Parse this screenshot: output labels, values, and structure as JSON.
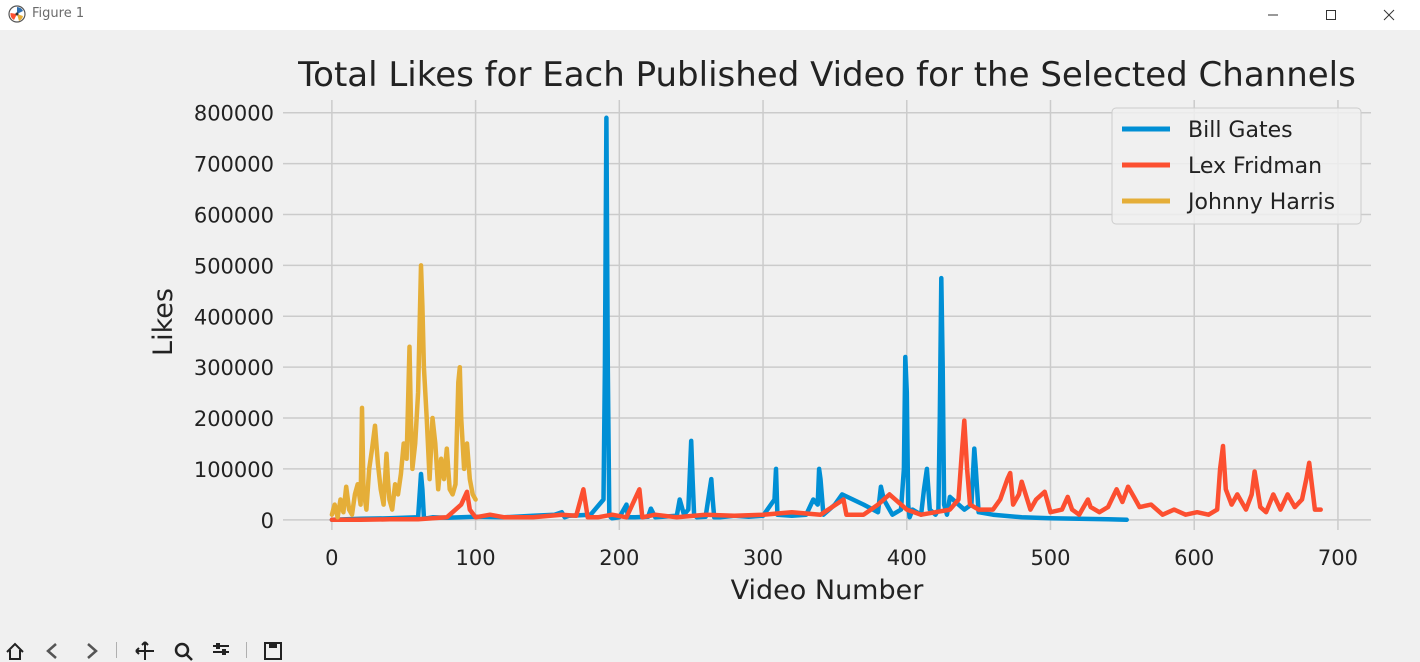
{
  "window": {
    "title": "Figure 1"
  },
  "toolbar": {
    "items": [
      "home-icon",
      "back-icon",
      "forward-icon",
      "pan-icon",
      "zoom-icon",
      "configure-icon",
      "save-icon"
    ]
  },
  "colors": {
    "background": "#f0f0f0",
    "grid": "#cbcbcb",
    "bill_gates": "#008fd5",
    "lex_fridman": "#fc4f30",
    "johnny_harris": "#e5ae38"
  },
  "chart_data": {
    "type": "line",
    "title": "Total Likes for Each Published Video for the Selected Channels",
    "xlabel": "Video Number",
    "ylabel": "Likes",
    "xlim": [
      -34,
      723
    ],
    "ylim": [
      -20000,
      825000
    ],
    "xticks": [
      0,
      100,
      200,
      300,
      400,
      500,
      600,
      700
    ],
    "yticks": [
      0,
      100000,
      200000,
      300000,
      400000,
      500000,
      600000,
      700000,
      800000
    ],
    "grid": true,
    "legend_position": "top-right",
    "series": [
      {
        "name": "Bill Gates",
        "color": "#008fd5",
        "x": [
          0,
          20,
          40,
          60,
          62,
          63,
          64,
          66,
          70,
          80,
          100,
          120,
          140,
          155,
          160,
          162,
          165,
          180,
          189,
          190,
          191,
          192,
          193,
          194,
          195,
          200,
          205,
          206,
          210,
          220,
          222,
          225,
          240,
          242,
          245,
          248,
          250,
          251,
          252,
          254,
          260,
          264,
          265,
          266,
          270,
          280,
          290,
          300,
          308,
          309,
          310,
          320,
          330,
          335,
          338,
          339,
          340,
          342,
          350,
          355,
          370,
          380,
          382,
          384,
          390,
          396,
          398,
          399,
          400,
          401,
          402,
          404,
          410,
          412,
          414,
          416,
          420,
          422,
          423,
          424,
          425,
          426,
          428,
          430,
          440,
          445,
          447,
          448,
          450,
          460,
          480,
          500,
          520,
          540,
          553
        ],
        "y": [
          0,
          2000,
          3000,
          5000,
          90000,
          60000,
          5000,
          3000,
          5000,
          4000,
          6000,
          5000,
          8000,
          10000,
          15000,
          5000,
          8000,
          10000,
          40000,
          300000,
          790000,
          300000,
          10000,
          5000,
          3000,
          5000,
          30000,
          5000,
          5000,
          6000,
          22000,
          5000,
          8000,
          40000,
          10000,
          20000,
          155000,
          80000,
          10000,
          5000,
          6000,
          80000,
          40000,
          5000,
          5000,
          8000,
          6000,
          8000,
          40000,
          100000,
          10000,
          8000,
          10000,
          40000,
          30000,
          100000,
          80000,
          10000,
          30000,
          50000,
          30000,
          15000,
          65000,
          40000,
          10000,
          20000,
          100000,
          320000,
          250000,
          30000,
          5000,
          20000,
          10000,
          60000,
          100000,
          20000,
          10000,
          20000,
          200000,
          475000,
          300000,
          30000,
          10000,
          45000,
          20000,
          30000,
          140000,
          100000,
          15000,
          10000,
          5000,
          3000,
          2000,
          1000,
          0
        ]
      },
      {
        "name": "Lex Fridman",
        "color": "#fc4f30",
        "x": [
          0,
          20,
          40,
          60,
          80,
          90,
          94,
          96,
          100,
          110,
          120,
          140,
          160,
          170,
          175,
          178,
          185,
          195,
          205,
          214,
          216,
          225,
          240,
          260,
          280,
          300,
          320,
          340,
          356,
          358,
          370,
          380,
          388,
          400,
          410,
          420,
          430,
          436,
          438,
          440,
          442,
          444,
          450,
          460,
          465,
          470,
          472,
          474,
          478,
          480,
          486,
          490,
          496,
          500,
          508,
          512,
          515,
          520,
          526,
          528,
          534,
          540,
          546,
          550,
          554,
          558,
          562,
          570,
          578,
          586,
          594,
          602,
          610,
          616,
          618,
          620,
          622,
          626,
          630,
          636,
          640,
          642,
          646,
          650,
          655,
          660,
          665,
          670,
          675,
          678,
          680,
          684,
          688
        ],
        "y": [
          0,
          0,
          1000,
          1000,
          5000,
          30000,
          55000,
          20000,
          5000,
          10000,
          5000,
          5000,
          10000,
          8000,
          60000,
          5000,
          5000,
          10000,
          5000,
          60000,
          5000,
          10000,
          5000,
          10000,
          8000,
          10000,
          15000,
          10000,
          40000,
          10000,
          10000,
          30000,
          50000,
          20000,
          10000,
          15000,
          20000,
          40000,
          120000,
          195000,
          100000,
          30000,
          20000,
          20000,
          40000,
          80000,
          92000,
          30000,
          50000,
          75000,
          20000,
          40000,
          55000,
          15000,
          20000,
          45000,
          20000,
          10000,
          40000,
          25000,
          15000,
          25000,
          60000,
          35000,
          65000,
          45000,
          25000,
          30000,
          10000,
          20000,
          10000,
          15000,
          10000,
          20000,
          100000,
          145000,
          60000,
          30000,
          50000,
          20000,
          50000,
          95000,
          25000,
          15000,
          50000,
          20000,
          50000,
          25000,
          40000,
          80000,
          112000,
          20000,
          20000
        ]
      },
      {
        "name": "Johnny Harris",
        "color": "#e5ae38",
        "x": [
          0,
          2,
          4,
          6,
          8,
          10,
          12,
          14,
          16,
          18,
          20,
          21,
          22,
          24,
          26,
          28,
          30,
          32,
          34,
          36,
          38,
          39,
          40,
          42,
          44,
          46,
          48,
          50,
          52,
          54,
          55,
          56,
          58,
          60,
          62,
          63,
          64,
          66,
          68,
          70,
          72,
          74,
          76,
          78,
          80,
          82,
          84,
          86,
          88,
          89,
          90,
          92,
          94,
          96,
          98,
          100
        ],
        "y": [
          10000,
          30000,
          5000,
          40000,
          15000,
          65000,
          20000,
          10000,
          50000,
          70000,
          30000,
          220000,
          60000,
          20000,
          100000,
          140000,
          185000,
          110000,
          60000,
          30000,
          130000,
          80000,
          40000,
          20000,
          70000,
          50000,
          90000,
          150000,
          120000,
          340000,
          200000,
          100000,
          150000,
          250000,
          500000,
          420000,
          300000,
          200000,
          80000,
          200000,
          150000,
          60000,
          120000,
          80000,
          140000,
          60000,
          50000,
          70000,
          270000,
          300000,
          200000,
          100000,
          150000,
          80000,
          50000,
          40000
        ]
      }
    ]
  }
}
